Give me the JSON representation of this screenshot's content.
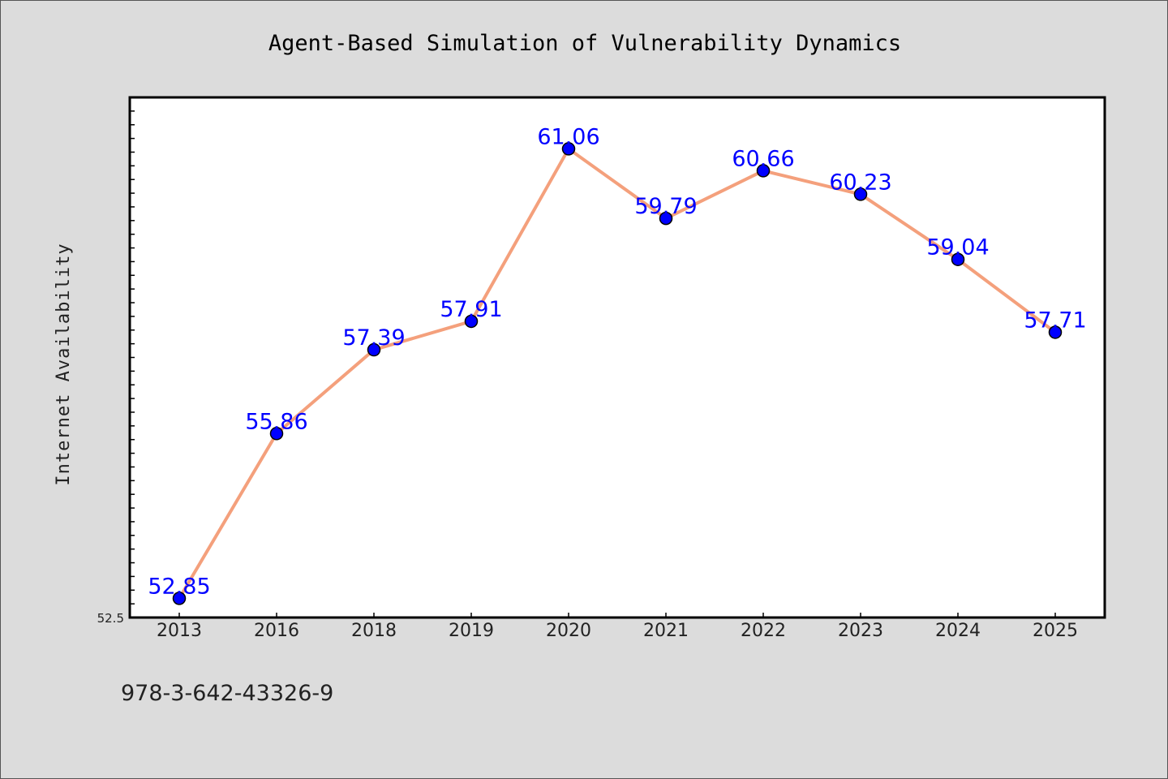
{
  "chart_data": {
    "type": "line",
    "title": "Agent-Based Simulation of Vulnerability Dynamics",
    "xlabel": "",
    "ylabel": "Internet Availability",
    "categories": [
      "2013",
      "2016",
      "2018",
      "2019",
      "2020",
      "2021",
      "2022",
      "2023",
      "2024",
      "2025"
    ],
    "series": [
      {
        "values": [
          52.85,
          55.86,
          57.39,
          57.91,
          61.06,
          59.79,
          60.66,
          60.23,
          59.04,
          57.71
        ],
        "labels": [
          "52.85",
          "55.86",
          "57.39",
          "57.91",
          "61.06",
          "59.79",
          "60.66",
          "60.23",
          "59.04",
          "57.71"
        ]
      }
    ],
    "ylim": [
      52.5,
      62.0
    ],
    "yticks_labeled": [
      "52.5"
    ],
    "grid": false,
    "legend": "none",
    "colors": {
      "line": "#f4a07c",
      "marker": "#0000ff",
      "marker_edge": "#000000",
      "label": "#0000ff",
      "plot_bg": "#ffffff",
      "figure_bg": "#dcdcdc"
    }
  },
  "footer": {
    "isbn": "978-3-642-43326-9"
  }
}
